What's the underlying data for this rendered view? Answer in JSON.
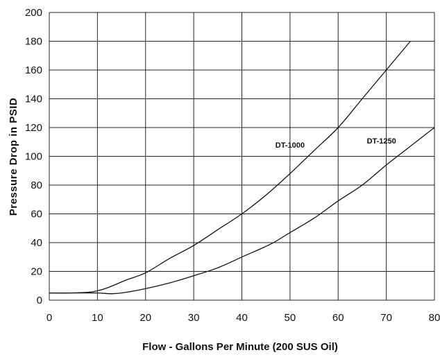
{
  "chart_data": {
    "type": "line",
    "title": "",
    "xlabel": "Flow - Gallons Per Minute (200 SUS Oil)",
    "ylabel": "Pressure Drop in PSID",
    "xlim": [
      0,
      80
    ],
    "ylim": [
      0,
      200
    ],
    "x_ticks": [
      "0",
      "10",
      "20",
      "30",
      "40",
      "50",
      "60",
      "70",
      "80"
    ],
    "y_ticks": [
      "0",
      "20",
      "40",
      "60",
      "80",
      "100",
      "120",
      "140",
      "160",
      "180",
      "200"
    ],
    "grid": true,
    "legend": "none",
    "series": [
      {
        "name": "DT-1000",
        "x": [
          0,
          4,
          8,
          10,
          12,
          16,
          20,
          25,
          30,
          35,
          40,
          45,
          50,
          55,
          60,
          65,
          70,
          75
        ],
        "y": [
          5,
          5,
          5.5,
          6.5,
          8.5,
          14,
          19,
          29,
          38,
          49,
          60,
          73,
          88,
          104,
          120,
          140,
          160,
          180
        ]
      },
      {
        "name": "DT-1250",
        "x": [
          0,
          4,
          8,
          10,
          13,
          16,
          20,
          25,
          30,
          35,
          40,
          46,
          50,
          55,
          60,
          65,
          70,
          75,
          80
        ],
        "y": [
          5,
          5,
          5,
          5,
          4.5,
          5.5,
          8,
          12,
          17,
          22.5,
          30,
          39,
          47,
          57,
          69,
          80,
          94,
          107,
          120
        ]
      }
    ],
    "annotations": [
      {
        "text": "DT-1000",
        "x": 50,
        "y": 106
      },
      {
        "text": "DT-1250",
        "x": 69,
        "y": 109
      }
    ]
  }
}
